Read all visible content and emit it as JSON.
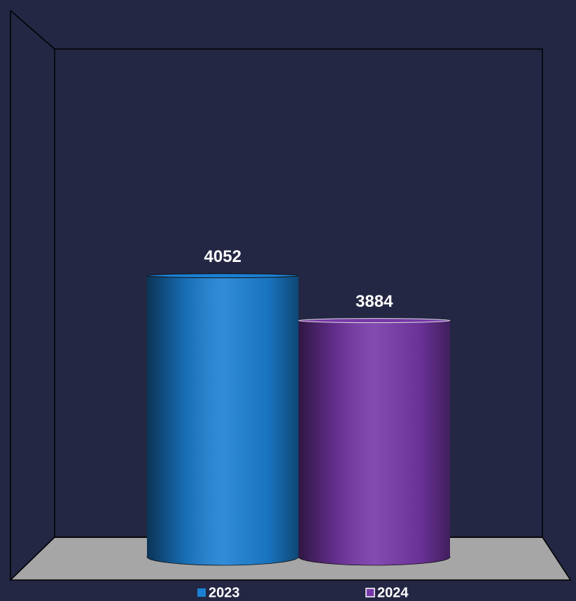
{
  "chart_data": {
    "type": "bar3d",
    "categories": [
      null
    ],
    "series": [
      {
        "name": "2023",
        "color": "#1b80d4",
        "values": [
          4052
        ]
      },
      {
        "name": "2024",
        "color": "#7637a8",
        "values": [
          3884
        ]
      }
    ],
    "ylim": [
      3000,
      4900
    ],
    "legend": "bottom"
  }
}
